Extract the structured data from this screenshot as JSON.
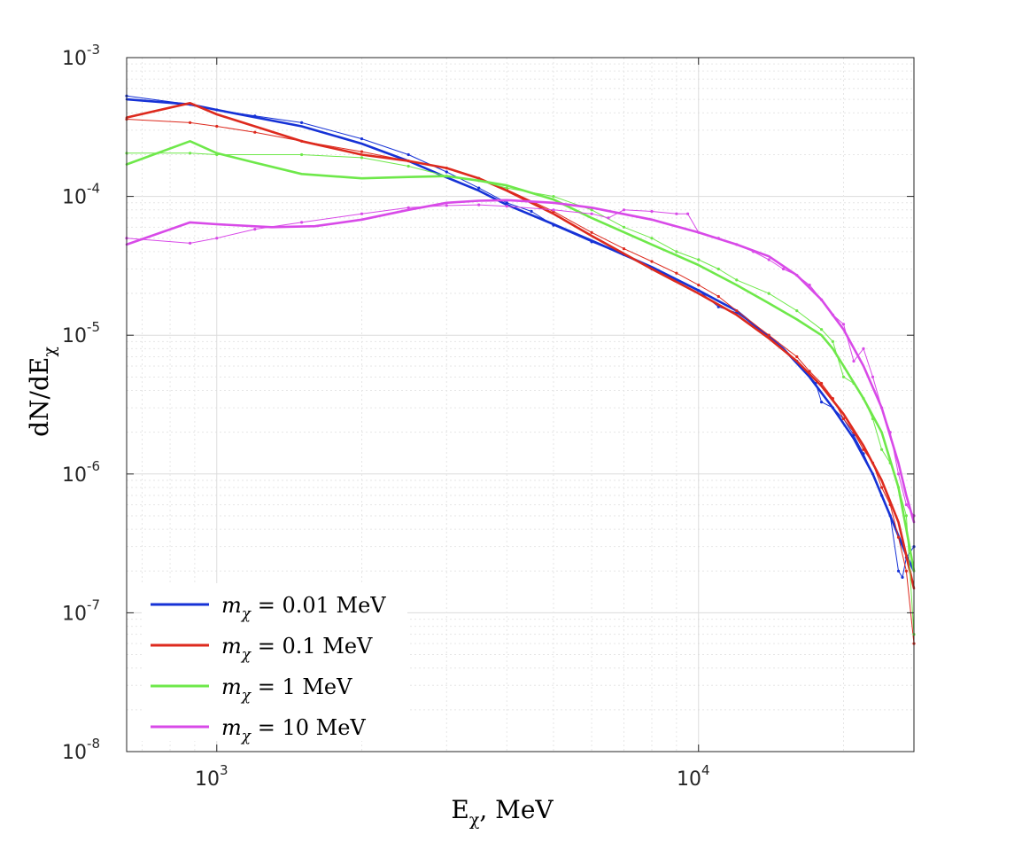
{
  "chart_data": {
    "type": "line",
    "title": "",
    "xlabel": "E",
    "xlabel_sub": "χ",
    "xlabel_rest": ", MeV",
    "ylabel": "dN/dE",
    "ylabel_sub": "χ",
    "x_scale": "log",
    "y_scale": "log",
    "xlim": [
      650,
      28000
    ],
    "ylim": [
      1e-08,
      0.001
    ],
    "grid": true,
    "minor_grid": true,
    "legend_position": "bottom-left",
    "x_ticks": [
      {
        "base": "10",
        "exp": "3",
        "value": 1000
      },
      {
        "base": "10",
        "exp": "4",
        "value": 10000
      }
    ],
    "y_ticks": [
      {
        "base": "10",
        "exp": "-3",
        "value": 0.001
      },
      {
        "base": "10",
        "exp": "-4",
        "value": 0.0001
      },
      {
        "base": "10",
        "exp": "-5",
        "value": 1e-05
      },
      {
        "base": "10",
        "exp": "-6",
        "value": 1e-06
      },
      {
        "base": "10",
        "exp": "-7",
        "value": 1e-07
      },
      {
        "base": "10",
        "exp": "-8",
        "value": 1e-08
      }
    ],
    "series": [
      {
        "name": "m_χ = 0.01 MeV",
        "legend_mass": "0.01 MeV",
        "color": "#1632d6",
        "smooth": [
          [
            650,
            0.0005
          ],
          [
            880,
            0.00046
          ],
          [
            1000,
            0.00042
          ],
          [
            1500,
            0.00032
          ],
          [
            2000,
            0.00024
          ],
          [
            2500,
            0.00018
          ],
          [
            3000,
            0.000137
          ],
          [
            3500,
            0.00011
          ],
          [
            4000,
            8.7e-05
          ],
          [
            5000,
            6.3e-05
          ],
          [
            6000,
            4.8e-05
          ],
          [
            8000,
            3.1e-05
          ],
          [
            10000,
            2.1e-05
          ],
          [
            12000,
            1.5e-05
          ],
          [
            15000,
            8e-06
          ],
          [
            17000,
            5e-06
          ],
          [
            19000,
            3e-06
          ],
          [
            21000,
            1.8e-06
          ],
          [
            23000,
            1e-06
          ],
          [
            25000,
            5e-07
          ],
          [
            27000,
            2.6e-07
          ],
          [
            28000,
            2e-07
          ]
        ],
        "simulated": [
          [
            650,
            0.00053
          ],
          [
            880,
            0.00046
          ],
          [
            1000,
            0.00042
          ],
          [
            1200,
            0.00038
          ],
          [
            1500,
            0.00034
          ],
          [
            2000,
            0.00026
          ],
          [
            2500,
            0.0002
          ],
          [
            3000,
            0.00015
          ],
          [
            3500,
            0.000115
          ],
          [
            4000,
            9e-05
          ],
          [
            4500,
            7.8e-05
          ],
          [
            5000,
            6.2e-05
          ],
          [
            6000,
            4.7e-05
          ],
          [
            7000,
            3.8e-05
          ],
          [
            8000,
            3e-05
          ],
          [
            9000,
            2.5e-05
          ],
          [
            10000,
            2.1e-05
          ],
          [
            11000,
            1.6e-05
          ],
          [
            12000,
            1.45e-05
          ],
          [
            14000,
            1e-05
          ],
          [
            16000,
            6.5e-06
          ],
          [
            17500,
            4.5e-06
          ],
          [
            18000,
            3.3e-06
          ],
          [
            19000,
            3e-06
          ],
          [
            20000,
            2.5e-06
          ],
          [
            21000,
            1.9e-06
          ],
          [
            22000,
            1.4e-06
          ],
          [
            23000,
            1e-06
          ],
          [
            24000,
            7e-07
          ],
          [
            25000,
            5e-07
          ],
          [
            26000,
            2e-07
          ],
          [
            26500,
            1.8e-07
          ],
          [
            27000,
            2.5e-07
          ],
          [
            28000,
            3e-07
          ]
        ]
      },
      {
        "name": "m_χ = 0.1 MeV",
        "legend_mass": "0.1 MeV",
        "color": "#dd2a1e",
        "smooth": [
          [
            650,
            0.00037
          ],
          [
            880,
            0.00047
          ],
          [
            1000,
            0.00039
          ],
          [
            1500,
            0.00025
          ],
          [
            2000,
            0.0002
          ],
          [
            2500,
            0.00018
          ],
          [
            3000,
            0.00016
          ],
          [
            3500,
            0.000135
          ],
          [
            4000,
            0.00011
          ],
          [
            5000,
            7.5e-05
          ],
          [
            6000,
            5.2e-05
          ],
          [
            8000,
            3e-05
          ],
          [
            10000,
            2e-05
          ],
          [
            12000,
            1.4e-05
          ],
          [
            14000,
            9.5e-06
          ],
          [
            16000,
            6.5e-06
          ],
          [
            18000,
            4.3e-06
          ],
          [
            20000,
            2.7e-06
          ],
          [
            22000,
            1.6e-06
          ],
          [
            24000,
            9e-07
          ],
          [
            26000,
            4.5e-07
          ],
          [
            28000,
            1.5e-07
          ]
        ],
        "simulated": [
          [
            650,
            0.00036
          ],
          [
            880,
            0.00034
          ],
          [
            1000,
            0.00032
          ],
          [
            1200,
            0.00029
          ],
          [
            1500,
            0.00025
          ],
          [
            2000,
            0.00021
          ],
          [
            2500,
            0.00018
          ],
          [
            3000,
            0.00016
          ],
          [
            3500,
            0.000135
          ],
          [
            4000,
            0.000112
          ],
          [
            5000,
            7.8e-05
          ],
          [
            6000,
            5.5e-05
          ],
          [
            7000,
            4.2e-05
          ],
          [
            8000,
            3.4e-05
          ],
          [
            9000,
            2.8e-05
          ],
          [
            10000,
            2.3e-05
          ],
          [
            11000,
            1.9e-05
          ],
          [
            12000,
            1.5e-05
          ],
          [
            14000,
            1e-05
          ],
          [
            16000,
            7e-06
          ],
          [
            17000,
            5.5e-06
          ],
          [
            18000,
            4.5e-06
          ],
          [
            19000,
            3.5e-06
          ],
          [
            20000,
            2.5e-06
          ],
          [
            21000,
            2e-06
          ],
          [
            22000,
            1.5e-06
          ],
          [
            23000,
            1.2e-06
          ],
          [
            24000,
            8e-07
          ],
          [
            25000,
            6e-07
          ],
          [
            26000,
            3.5e-07
          ],
          [
            27000,
            2e-07
          ],
          [
            28000,
            6e-08
          ]
        ]
      },
      {
        "name": "m_χ = 1 MeV",
        "legend_mass": "1 MeV",
        "color": "#6ee84a",
        "smooth": [
          [
            650,
            0.00017
          ],
          [
            880,
            0.00025
          ],
          [
            1000,
            0.000205
          ],
          [
            1200,
            0.000175
          ],
          [
            1500,
            0.000145
          ],
          [
            2000,
            0.000135
          ],
          [
            2500,
            0.000138
          ],
          [
            3000,
            0.00014
          ],
          [
            3500,
            0.00013
          ],
          [
            4000,
            0.00012
          ],
          [
            5000,
            9.5e-05
          ],
          [
            6000,
            7e-05
          ],
          [
            8000,
            4.5e-05
          ],
          [
            10000,
            3.2e-05
          ],
          [
            12000,
            2.3e-05
          ],
          [
            14000,
            1.7e-05
          ],
          [
            16000,
            1.3e-05
          ],
          [
            18000,
            1e-05
          ],
          [
            19000,
            8e-06
          ],
          [
            20000,
            6e-06
          ],
          [
            22000,
            3.5e-06
          ],
          [
            24000,
            2e-06
          ],
          [
            26000,
            8e-07
          ],
          [
            27000,
            4e-07
          ],
          [
            28000,
            2e-07
          ]
        ],
        "simulated": [
          [
            650,
            0.000205
          ],
          [
            880,
            0.000205
          ],
          [
            1000,
            0.0002
          ],
          [
            1500,
            0.0002
          ],
          [
            2000,
            0.00019
          ],
          [
            2500,
            0.000165
          ],
          [
            3000,
            0.00014
          ],
          [
            3500,
            0.00013
          ],
          [
            4000,
            0.000115
          ],
          [
            5000,
            0.0001
          ],
          [
            6000,
            8e-05
          ],
          [
            7000,
            6e-05
          ],
          [
            8000,
            5e-05
          ],
          [
            9000,
            4e-05
          ],
          [
            10000,
            3.5e-05
          ],
          [
            11000,
            3e-05
          ],
          [
            12000,
            2.5e-05
          ],
          [
            14000,
            2e-05
          ],
          [
            16000,
            1.5e-05
          ],
          [
            18000,
            1.1e-05
          ],
          [
            19000,
            9e-06
          ],
          [
            20000,
            5e-06
          ],
          [
            21000,
            4.5e-06
          ],
          [
            22000,
            3.5e-06
          ],
          [
            23000,
            2.5e-06
          ],
          [
            24000,
            1.5e-06
          ],
          [
            25000,
            1.2e-06
          ],
          [
            26000,
            8e-07
          ],
          [
            27000,
            5e-07
          ],
          [
            28000,
            7e-08
          ]
        ]
      },
      {
        "name": "m_χ = 10 MeV",
        "legend_mass": "10 MeV",
        "color": "#d84ae8",
        "smooth": [
          [
            650,
            4.5e-05
          ],
          [
            880,
            6.5e-05
          ],
          [
            1000,
            6.3e-05
          ],
          [
            1300,
            6e-05
          ],
          [
            1600,
            6.1e-05
          ],
          [
            2000,
            6.8e-05
          ],
          [
            2500,
            8e-05
          ],
          [
            3000,
            9e-05
          ],
          [
            3500,
            9.3e-05
          ],
          [
            4000,
            9.4e-05
          ],
          [
            5000,
            9e-05
          ],
          [
            6000,
            8.3e-05
          ],
          [
            8000,
            6.8e-05
          ],
          [
            10000,
            5.5e-05
          ],
          [
            12000,
            4.5e-05
          ],
          [
            14000,
            3.7e-05
          ],
          [
            16000,
            2.7e-05
          ],
          [
            18000,
            1.8e-05
          ],
          [
            20000,
            1.1e-05
          ],
          [
            22000,
            6e-06
          ],
          [
            24000,
            3e-06
          ],
          [
            26000,
            1.2e-06
          ],
          [
            27000,
            7e-07
          ],
          [
            28000,
            4.5e-07
          ]
        ],
        "simulated": [
          [
            650,
            5e-05
          ],
          [
            880,
            4.6e-05
          ],
          [
            1000,
            5e-05
          ],
          [
            1200,
            5.8e-05
          ],
          [
            1500,
            6.5e-05
          ],
          [
            2000,
            7.5e-05
          ],
          [
            2500,
            8.3e-05
          ],
          [
            3000,
            8.6e-05
          ],
          [
            3500,
            8.7e-05
          ],
          [
            4000,
            8.5e-05
          ],
          [
            5000,
            8e-05
          ],
          [
            6000,
            7.5e-05
          ],
          [
            6500,
            7e-05
          ],
          [
            7000,
            8e-05
          ],
          [
            8000,
            7.8e-05
          ],
          [
            9000,
            7.5e-05
          ],
          [
            9500,
            7.5e-05
          ],
          [
            10000,
            5.5e-05
          ],
          [
            11000,
            5e-05
          ],
          [
            12000,
            4.5e-05
          ],
          [
            13000,
            4e-05
          ],
          [
            14000,
            3.5e-05
          ],
          [
            15000,
            3e-05
          ],
          [
            16000,
            2.7e-05
          ],
          [
            17000,
            2.3e-05
          ],
          [
            18000,
            1.8e-05
          ],
          [
            19000,
            1.4e-05
          ],
          [
            20000,
            1.2e-05
          ],
          [
            21000,
            6.5e-06
          ],
          [
            22000,
            8e-06
          ],
          [
            23000,
            5e-06
          ],
          [
            24000,
            3e-06
          ],
          [
            25000,
            2e-06
          ],
          [
            26000,
            1e-06
          ],
          [
            27000,
            6e-07
          ],
          [
            28000,
            5e-07
          ]
        ]
      }
    ]
  }
}
